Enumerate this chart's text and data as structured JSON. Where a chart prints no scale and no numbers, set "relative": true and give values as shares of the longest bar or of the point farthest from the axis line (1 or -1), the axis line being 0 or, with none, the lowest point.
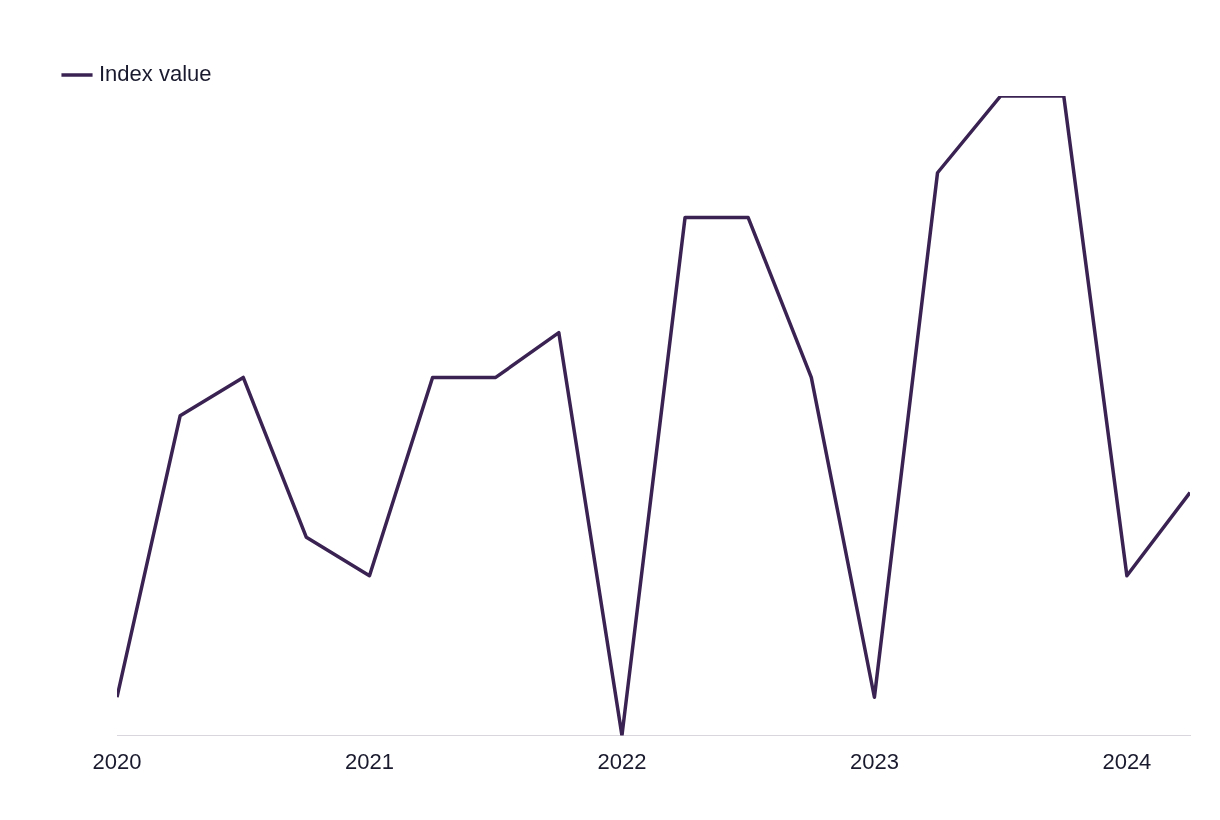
{
  "chart_data": {
    "type": "line",
    "relative": true,
    "x": [
      "2020-01",
      "2020-04",
      "2020-07",
      "2020-10",
      "2021-01",
      "2021-04",
      "2021-07",
      "2021-10",
      "2022-01",
      "2022-04",
      "2022-07",
      "2022-10",
      "2023-01",
      "2023-04",
      "2023-07",
      "2023-10",
      "2024-01",
      "2024-04"
    ],
    "xlim": [
      "2020-01",
      "2024-04"
    ],
    "xticks": [
      "2020",
      "2021",
      "2022",
      "2023",
      "2024"
    ],
    "series": [
      {
        "name": "Index value",
        "color": "#3a2352",
        "values": [
          0.06,
          0.5,
          0.56,
          0.31,
          0.25,
          0.56,
          0.56,
          0.63,
          0,
          0.81,
          0.81,
          0.56,
          0.06,
          0.88,
          1,
          1,
          0.25,
          0.38
        ]
      }
    ],
    "legend": "top left",
    "grid": false,
    "marker": "none",
    "line_style": "solid"
  }
}
